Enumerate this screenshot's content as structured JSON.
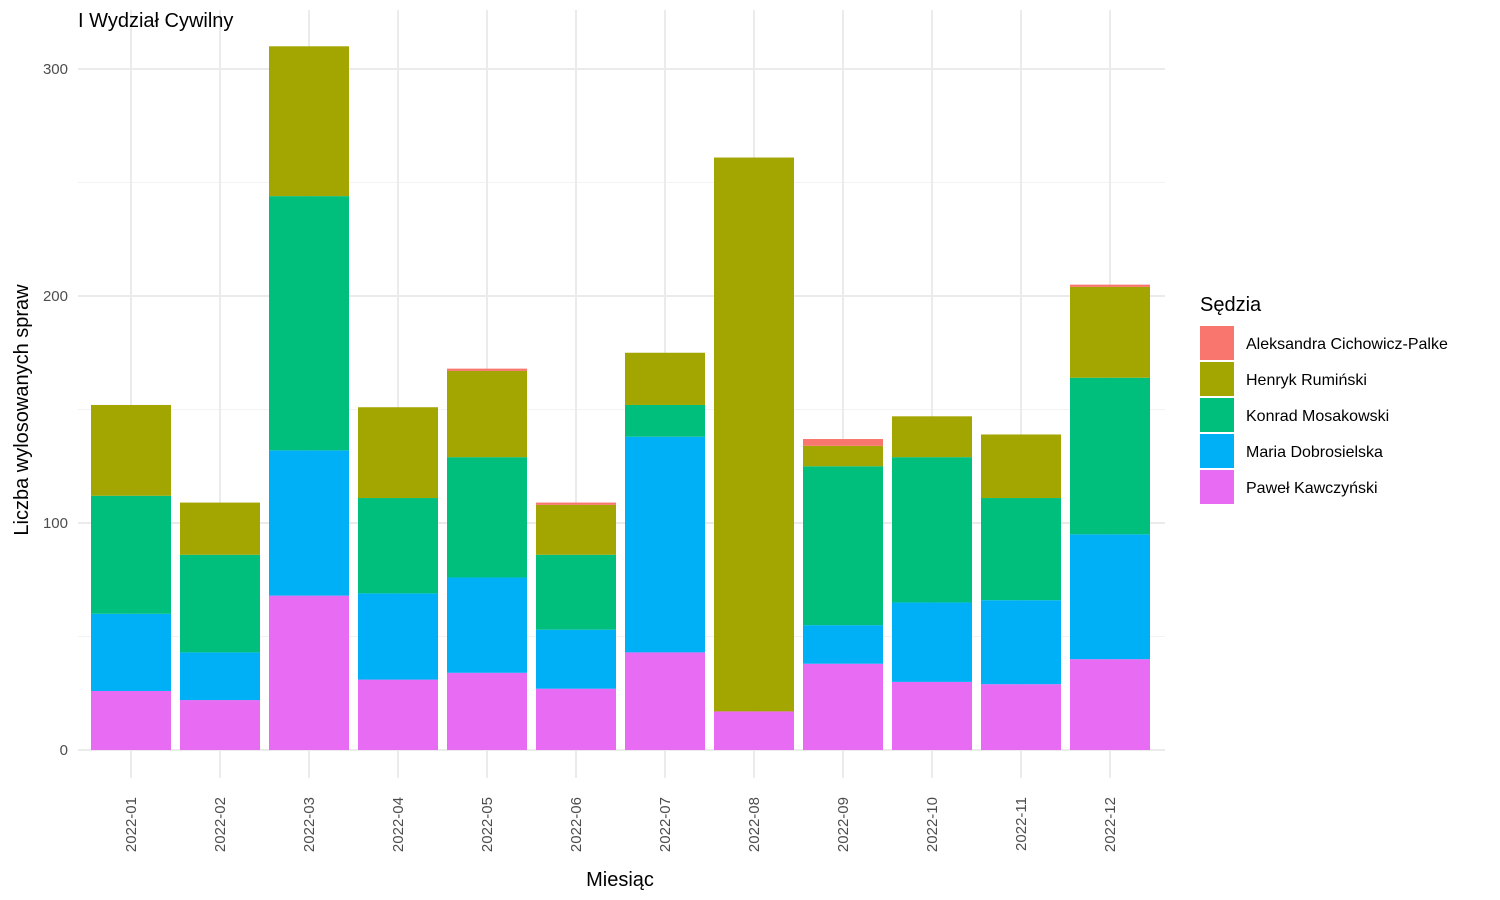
{
  "chart_data": {
    "type": "bar",
    "stacked": true,
    "title": "I Wydział Cywilny",
    "xlabel": "Miesiąc",
    "ylabel": "Liczba wylosowanych spraw",
    "ylim": [
      0,
      310
    ],
    "yticks": [
      0,
      100,
      200,
      300
    ],
    "grid": true,
    "legend_title": "Sędzia",
    "legend_position": "right",
    "categories": [
      "2022-01",
      "2022-02",
      "2022-03",
      "2022-04",
      "2022-05",
      "2022-06",
      "2022-07",
      "2022-08",
      "2022-09",
      "2022-10",
      "2022-11",
      "2022-12"
    ],
    "series": [
      {
        "name": "Aleksandra Cichowicz-Palke",
        "color": "#F8766D",
        "values": [
          0,
          0,
          0,
          0,
          1,
          1,
          0,
          0,
          3,
          0,
          0,
          1
        ]
      },
      {
        "name": "Henryk Rumiński",
        "color": "#A3A500",
        "values": [
          40,
          23,
          66,
          40,
          38,
          22,
          23,
          244,
          9,
          18,
          28,
          40
        ]
      },
      {
        "name": "Konrad Mosakowski",
        "color": "#00BF7D",
        "values": [
          52,
          43,
          112,
          42,
          53,
          33,
          14,
          0,
          70,
          64,
          45,
          69
        ]
      },
      {
        "name": "Maria Dobrosielska",
        "color": "#00B0F6",
        "values": [
          34,
          21,
          64,
          38,
          42,
          26,
          95,
          0,
          17,
          35,
          37,
          55
        ]
      },
      {
        "name": "Paweł Kawczyński",
        "color": "#E76BF3",
        "values": [
          26,
          22,
          68,
          31,
          34,
          27,
          43,
          17,
          38,
          30,
          29,
          40
        ]
      }
    ]
  }
}
